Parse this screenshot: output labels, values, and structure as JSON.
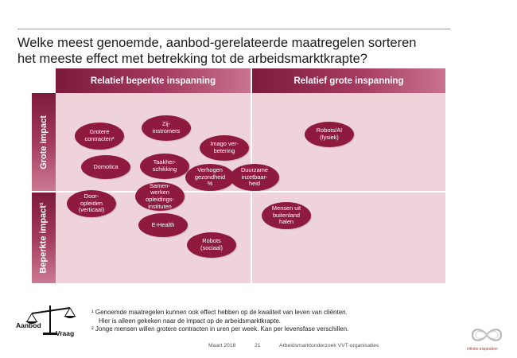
{
  "title": {
    "line1": "Welke meest genoemde, aanbod-gerelateerde maatregelen sorteren",
    "line2": "het meeste effect met betrekking tot de arbeidsmarktkrapte?"
  },
  "columns": {
    "left": "Relatief beperkte inspanning",
    "right": "Relatief grote inspanning"
  },
  "rows": {
    "top": "Grote impact",
    "bottom": "Beperkte impact¹"
  },
  "measures": [
    {
      "label": "Grotere\ncontracten²"
    },
    {
      "label": "Zij-\ninstromers"
    },
    {
      "label": "Imago ver-\nbetering"
    },
    {
      "label": "Robots/AI\n(fysiek)"
    },
    {
      "label": "Domotica"
    },
    {
      "label": "Taakher-\nschikking"
    },
    {
      "label": "Verhogen\ngezondheid\n%"
    },
    {
      "label": "Duurzame\ninzetbaar-\nheid"
    },
    {
      "label": "Door-\nopleiden\n(verticaal)"
    },
    {
      "label": "Samen-\nwerken\nopleidings-\ninstituten"
    },
    {
      "label": "Mensen uit\nbuitenland\nhalen"
    },
    {
      "label": "E-Health"
    },
    {
      "label": "Robots\n(sociaal)"
    }
  ],
  "footnotes": {
    "note1_line1": "¹ Genoemde maatregelen kunnen ook effect hebben op de kwaliteit van leven van cliënten.",
    "note1_line2": "Hier is alleen gekeken naar de impact op de arbeidsmarktkrapte.",
    "note2": "² Jonge mensen willen grotere contracten in uren per week. Kan per levensfase verschillen."
  },
  "logo_left": {
    "word1": "Aanbod",
    "word2": "Vraag"
  },
  "footer": {
    "date": "Maart 2018",
    "page": "21",
    "subject": "Arbeidsmarktonderzoek  VVT-organisaties"
  },
  "logo_right": {
    "name": "infinite inspiration"
  },
  "colors": {
    "bubble": "#8e1a3e",
    "quadrant": "#efd3da",
    "header_dark": "#7d1a3c",
    "header_light": "#c9738f"
  }
}
